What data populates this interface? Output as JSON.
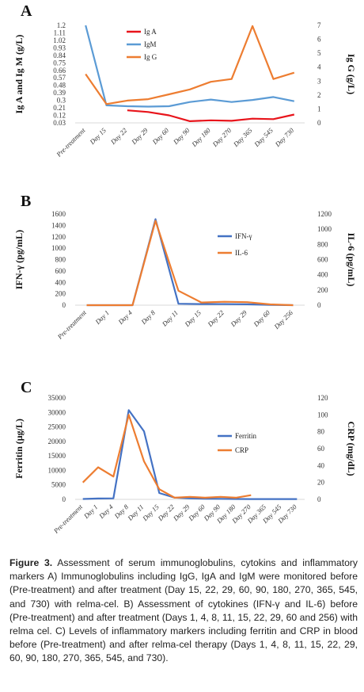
{
  "chart_data": [
    {
      "panel": "A",
      "type": "line",
      "ylabel": "Ig A and Ig M (g/L)",
      "y2label": "Ig G (g/L)",
      "yticks": [
        "0.03",
        "0.12",
        "0.21",
        "0.3",
        "0.39",
        "0.48",
        "0.57",
        "0.66",
        "0.75",
        "0.84",
        "0.93",
        "1.02",
        "1.11",
        "1.2"
      ],
      "y2ticks": [
        "0",
        "1",
        "2",
        "3",
        "4",
        "5",
        "6",
        "7"
      ],
      "ylim": [
        0.03,
        1.2
      ],
      "y2lim": [
        0,
        7
      ],
      "categories": [
        "Pre-treatment",
        "Day 15",
        "Day 22",
        "Day 29",
        "Day 60",
        "Day 90",
        "Day 180",
        "Day 270",
        "Day 365",
        "Day 545",
        "Day 730"
      ],
      "legend_position": "top-center",
      "series": [
        {
          "name": "Ig A",
          "color": "#e8141b",
          "axis": "left",
          "values": [
            null,
            null,
            0.18,
            0.16,
            0.12,
            0.05,
            0.06,
            0.055,
            0.08,
            0.075,
            0.13
          ]
        },
        {
          "name": "IgM",
          "color": "#5b9bd5",
          "axis": "left",
          "values": [
            1.2,
            0.24,
            0.23,
            0.225,
            0.23,
            0.28,
            0.31,
            0.28,
            0.305,
            0.34,
            0.29
          ]
        },
        {
          "name": "Ig G",
          "color": "#ed7d31",
          "axis": "right",
          "values": [
            3.5,
            1.35,
            1.6,
            1.7,
            2.05,
            2.4,
            2.95,
            3.15,
            6.95,
            3.15,
            3.6
          ]
        }
      ]
    },
    {
      "panel": "B",
      "type": "line",
      "ylabel": "IFN-γ (pg/mL)",
      "y2label": "IL-6 (pg/mL)",
      "yticks": [
        "0",
        "200",
        "400",
        "600",
        "800",
        "1000",
        "1200",
        "1400",
        "1600"
      ],
      "y2ticks": [
        "0",
        "200",
        "400",
        "600",
        "800",
        "1000",
        "1200"
      ],
      "ylim": [
        0,
        1600
      ],
      "y2lim": [
        0,
        1200
      ],
      "categories": [
        "Pre-treatment",
        "Day 1",
        "Day 4",
        "Day 8",
        "Day 11",
        "Day 15",
        "Day 22",
        "Day 29",
        "Day 60",
        "Day 256"
      ],
      "legend_position": "right",
      "series": [
        {
          "name": "IFN-γ",
          "color": "#4472c4",
          "axis": "left",
          "values": [
            0,
            0,
            0,
            1510,
            25,
            20,
            20,
            15,
            5,
            0
          ]
        },
        {
          "name": "IL-6",
          "color": "#ed7d31",
          "axis": "right",
          "values": [
            0,
            0,
            0,
            1110,
            190,
            35,
            45,
            40,
            10,
            0
          ]
        }
      ]
    },
    {
      "panel": "C",
      "type": "line",
      "ylabel": "Ferritin (μg/L)",
      "y2label": "CRP (mg/dL)",
      "yticks": [
        "0",
        "5000",
        "10000",
        "15000",
        "20000",
        "25000",
        "30000",
        "35000"
      ],
      "y2ticks": [
        "0",
        "20",
        "40",
        "60",
        "80",
        "100",
        "120"
      ],
      "ylim": [
        0,
        35000
      ],
      "y2lim": [
        0,
        120
      ],
      "categories": [
        "Pre-treatment",
        "Day 1",
        "Day 4",
        "Day 8",
        "Day 11",
        "Day 15",
        "Day 22",
        "Day 29",
        "Day 60",
        "Day 90",
        "Day 180",
        "Day 270",
        "Day 365",
        "Day 545",
        "Day 730"
      ],
      "legend_position": "right",
      "series": [
        {
          "name": "Ferritin",
          "color": "#4472c4",
          "axis": "left",
          "values": [
            150,
            300,
            350,
            30800,
            23500,
            2200,
            600,
            350,
            250,
            200,
            150,
            100,
            100,
            100,
            100
          ]
        },
        {
          "name": "CRP",
          "color": "#ed7d31",
          "axis": "right",
          "values": [
            20,
            38,
            27,
            100,
            45,
            12,
            2,
            3,
            2,
            3,
            2,
            5,
            null,
            null,
            null
          ]
        }
      ]
    }
  ],
  "caption": {
    "label": "Figure 3.",
    "text": " Assessment of serum immunoglobulins, cytokins and inflammatory markers A) Immunoglobulins including IgG, IgA and IgM were monitored before (Pre-treatment) and after treatment (Day 15, 22, 29, 60, 90, 180, 270, 365, 545, and 730) with relma-cel. B) Assessment of cytokines (IFN-γ and IL-6) before (Pre-treatment) and after treatment (Days 1, 4, 8, 11, 15, 22, 29, 60 and 256) with relma cel. C) Levels of inflammatory markers including ferritin and CRP in blood before (Pre-treatment) and after relma-cel therapy (Days 1, 4, 8, 11, 15, 22, 29, 60, 90, 180, 270, 365, 545, and 730)."
  }
}
